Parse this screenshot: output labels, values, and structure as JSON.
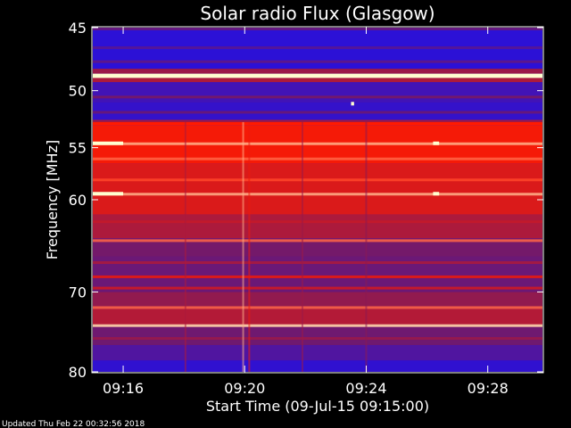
{
  "chart_data": {
    "type": "heatmap",
    "title": "Solar radio Flux (Glasgow)",
    "xlabel": "Start Time (09-Jul-15 09:15:00)",
    "ylabel": "Frequency [MHz]",
    "updated": "Updated Thu Feb 22 00:32:56 2018",
    "x_ticks": [
      "09:16",
      "09:20",
      "09:24",
      "09:28"
    ],
    "x_tick_values_min": [
      1,
      5,
      9,
      13
    ],
    "xlim_min": [
      0,
      14.8
    ],
    "y_ticks": [
      45,
      50,
      55,
      60,
      70,
      80
    ],
    "ylim_mhz": [
      45,
      80
    ],
    "y_scale": "log",
    "colors": {
      "low": "#1b0ff0",
      "mid": "#7a1a60",
      "high": "#ff1a00",
      "peak": "#ffffd0"
    },
    "bands": [
      {
        "f0": 45.0,
        "f1": 45.2,
        "level": 0.35
      },
      {
        "f0": 45.2,
        "f1": 48.2,
        "level": 0.08
      },
      {
        "f0": 48.2,
        "f1": 48.6,
        "level": 0.55
      },
      {
        "f0": 48.6,
        "f1": 48.95,
        "level": 1.0
      },
      {
        "f0": 48.95,
        "f1": 49.3,
        "level": 0.6
      },
      {
        "f0": 49.3,
        "f1": 51.0,
        "level": 0.18
      },
      {
        "f0": 51.0,
        "f1": 52.5,
        "level": 0.12
      },
      {
        "f0": 52.5,
        "f1": 52.7,
        "level": 0.55
      },
      {
        "f0": 52.7,
        "f1": 53.0,
        "level": 0.85
      },
      {
        "f0": 53.0,
        "f1": 56.5,
        "level": 0.82
      },
      {
        "f0": 56.5,
        "f1": 61.5,
        "level": 0.74
      },
      {
        "f0": 61.5,
        "f1": 64.0,
        "level": 0.6
      },
      {
        "f0": 64.0,
        "f1": 66.0,
        "level": 0.42
      },
      {
        "f0": 66.0,
        "f1": 70.0,
        "level": 0.38
      },
      {
        "f0": 70.0,
        "f1": 72.0,
        "level": 0.52
      },
      {
        "f0": 72.0,
        "f1": 74.2,
        "level": 0.62
      },
      {
        "f0": 74.2,
        "f1": 76.5,
        "level": 0.4
      },
      {
        "f0": 76.5,
        "f1": 78.5,
        "level": 0.25
      },
      {
        "f0": 78.5,
        "f1": 80.0,
        "level": 0.1
      }
    ],
    "lines": [
      {
        "f": 46.5,
        "level": 0.3
      },
      {
        "f": 47.6,
        "level": 0.35
      },
      {
        "f": 50.5,
        "level": 0.45
      },
      {
        "f": 51.8,
        "level": 0.4
      },
      {
        "f": 54.6,
        "level": 0.95
      },
      {
        "f": 56.0,
        "level": 0.9
      },
      {
        "f": 58.0,
        "level": 0.88
      },
      {
        "f": 59.4,
        "level": 0.95
      },
      {
        "f": 62.2,
        "level": 0.68
      },
      {
        "f": 64.2,
        "level": 0.9
      },
      {
        "f": 66.6,
        "level": 0.6
      },
      {
        "f": 68.2,
        "level": 0.8
      },
      {
        "f": 69.5,
        "level": 0.72
      },
      {
        "f": 71.8,
        "level": 0.9
      },
      {
        "f": 74.0,
        "level": 0.98
      },
      {
        "f": 75.6,
        "level": 0.55
      }
    ],
    "spikes": [
      {
        "t": 4.95,
        "level": 0.95
      },
      {
        "t": 5.15,
        "level": 0.8
      },
      {
        "t": 3.05,
        "level": 0.6
      },
      {
        "t": 6.9,
        "level": 0.55
      },
      {
        "t": 9.0,
        "level": 0.5
      }
    ],
    "patches": [
      {
        "t0": 0.0,
        "t1": 1.0,
        "f": 54.6,
        "level": 1.0
      },
      {
        "t0": 0.0,
        "t1": 1.0,
        "f": 59.4,
        "level": 1.0
      },
      {
        "t0": 11.2,
        "t1": 11.4,
        "f": 54.6,
        "level": 1.0
      },
      {
        "t0": 11.2,
        "t1": 11.4,
        "f": 59.4,
        "level": 1.0
      },
      {
        "t0": 8.5,
        "t1": 8.6,
        "f": 51.1,
        "level": 1.0
      }
    ]
  }
}
